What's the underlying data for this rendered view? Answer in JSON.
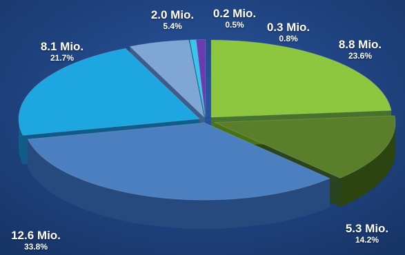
{
  "chart_data": {
    "type": "pie",
    "title": "",
    "slices": [
      {
        "value_label": "8.8 Mio.",
        "percent_label": "23.6%",
        "value": 8.8,
        "percent": 23.6,
        "color": "#8dc63f",
        "side": "#4e7a1a"
      },
      {
        "value_label": "5.3 Mio.",
        "percent_label": "14.2%",
        "value": 5.3,
        "percent": 14.2,
        "color": "#5a7e2a",
        "side": "#2c4410"
      },
      {
        "value_label": "12.6 Mio.",
        "percent_label": "33.8%",
        "value": 12.6,
        "percent": 33.8,
        "color": "#4b7fc0",
        "side": "#26497e"
      },
      {
        "value_label": "8.1 Mio.",
        "percent_label": "21.7%",
        "value": 8.1,
        "percent": 21.7,
        "color": "#1ea6e0",
        "side": "#0d5f8a"
      },
      {
        "value_label": "2.0 Mio.",
        "percent_label": "5.4%",
        "value": 2.0,
        "percent": 5.4,
        "color": "#7fa6d4",
        "side": "#3f5f8c"
      },
      {
        "value_label": "0.2 Mio.",
        "percent_label": "0.5%",
        "value": 0.2,
        "percent": 0.5,
        "color": "#37c6ee",
        "side": "#157a98"
      },
      {
        "value_label": "0.3 Mio.",
        "percent_label": "0.8%",
        "value": 0.3,
        "percent": 0.8,
        "color": "#6a3ab0",
        "side": "#3a1c66"
      }
    ]
  }
}
